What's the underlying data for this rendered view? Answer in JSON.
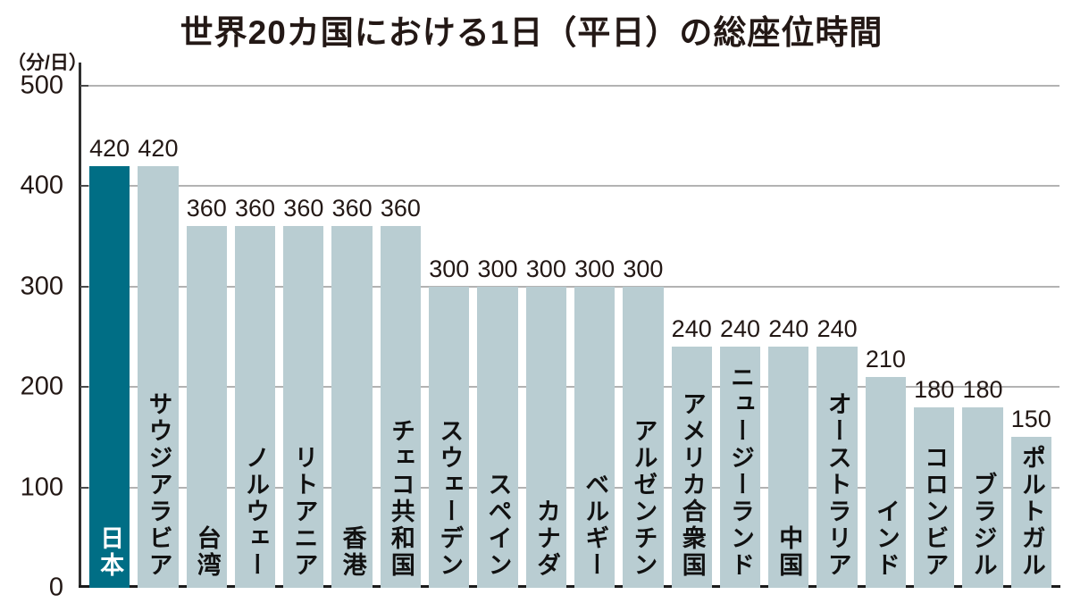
{
  "page": {
    "title": "世界20カ国における1日（平日）の総座位時間",
    "y_unit_label": "（分/日）"
  },
  "chart_data": {
    "type": "bar",
    "title": "世界20カ国における1日（平日）の総座位時間",
    "ylabel": "分/日",
    "ylim": [
      0,
      500
    ],
    "y_tick_labels": [
      "500",
      "400",
      "300",
      "200",
      "100",
      "0"
    ],
    "grid": true,
    "legend": "none",
    "categories": [
      "日本",
      "サウジアラビア",
      "台湾",
      "ノルウェー",
      "リトアニア",
      "香港",
      "チェコ共和国",
      "スウェーデン",
      "スペイン",
      "カナダ",
      "ベルギー",
      "アルゼンチン",
      "アメリカ合衆国",
      "ニュージーランド",
      "中国",
      "オーストラリア",
      "インド",
      "コロンビア",
      "ブラジル",
      "ポルトガル"
    ],
    "values": [
      420,
      420,
      360,
      360,
      360,
      360,
      360,
      300,
      300,
      300,
      300,
      300,
      240,
      240,
      240,
      240,
      210,
      180,
      180,
      150
    ],
    "value_labels": [
      "420",
      "420",
      "360",
      "360",
      "360",
      "360",
      "360",
      "300",
      "300",
      "300",
      "300",
      "300",
      "240",
      "240",
      "240",
      "240",
      "210",
      "180",
      "180",
      "150"
    ],
    "highlight": {
      "index": 0,
      "label": "日本"
    },
    "colors": {
      "highlight_bar": "#006e85",
      "default_bar": "#b9cdd2",
      "highlight_label": "#ffffff",
      "default_label": "#111111",
      "text": "#231815",
      "gridline": "#b3b3b3",
      "axis": "#2f2f2f",
      "baseline": "#1a1a1a"
    }
  }
}
